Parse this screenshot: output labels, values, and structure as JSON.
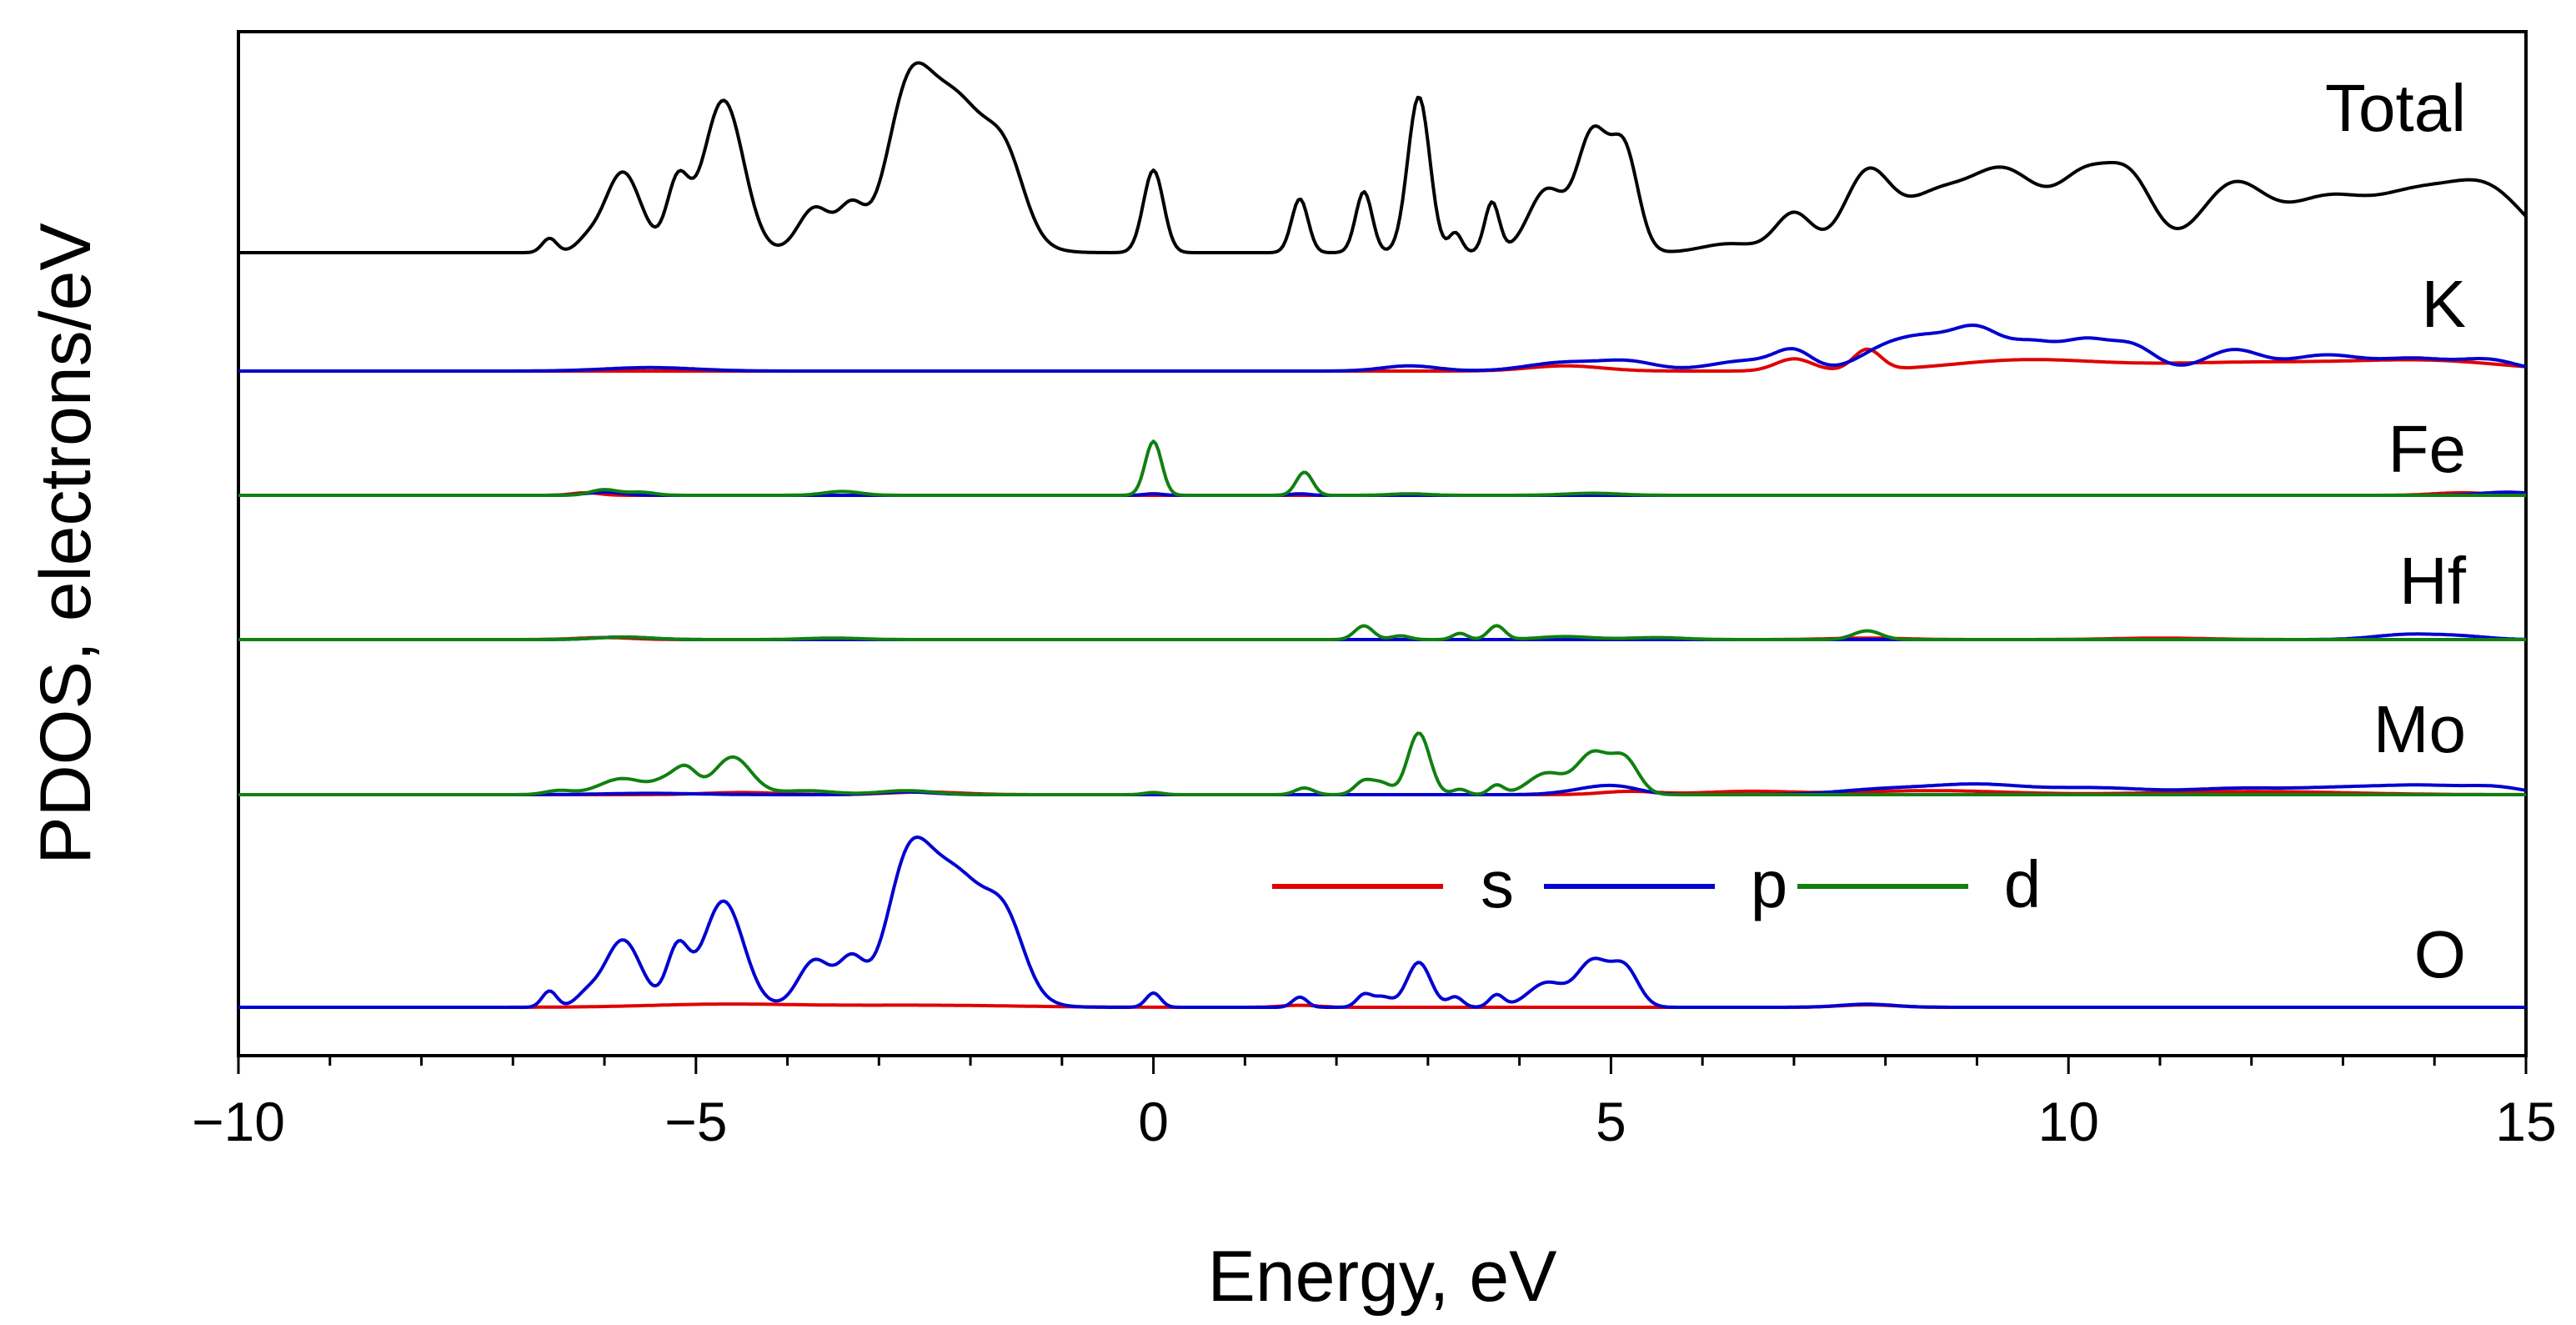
{
  "chart_data": {
    "type": "line",
    "title": "",
    "xlabel": "Energy, eV",
    "ylabel": "PDOS, electrons/eV",
    "xlim": [
      -10,
      15
    ],
    "xticks": [
      -10,
      -5,
      0,
      5,
      10,
      15
    ],
    "xtick_labels": [
      "−10",
      "−5",
      "0",
      "5",
      "10",
      "15"
    ],
    "x_minor_step": 1,
    "legend": {
      "placement": "inside, above O panel",
      "entries": [
        {
          "label": "s",
          "color": "#e00000"
        },
        {
          "label": "p",
          "color": "#0000d0"
        },
        {
          "label": "d",
          "color": "#108010"
        }
      ]
    },
    "panels": [
      {
        "label": "Total",
        "ymax": 10,
        "series": [
          {
            "name": "total",
            "color": "#000000",
            "peaks": [
              [
                -6.6,
                0.8,
                0.08
              ],
              [
                -6.2,
                0.5,
                0.12
              ],
              [
                -5.8,
                4.5,
                0.2
              ],
              [
                -5.2,
                3.8,
                0.12
              ],
              [
                -4.7,
                8.5,
                0.22
              ],
              [
                -3.7,
                2.5,
                0.18
              ],
              [
                -3.3,
                2.3,
                0.14
              ],
              [
                -2.7,
                5.5,
                0.22
              ],
              [
                -2.2,
                8.8,
                0.42
              ],
              [
                -1.6,
                3.0,
                0.2
              ],
              [
                0,
                4.6,
                0.11
              ],
              [
                1.6,
                3.0,
                0.09
              ],
              [
                2.3,
                3.4,
                0.09
              ],
              [
                2.9,
                8.7,
                0.12
              ],
              [
                3.3,
                1.1,
                0.07
              ],
              [
                3.7,
                2.8,
                0.08
              ],
              [
                4.3,
                3.5,
                0.2
              ],
              [
                4.8,
                6.5,
                0.17
              ],
              [
                5.15,
                5.5,
                0.15
              ],
              [
                6.3,
                0.5,
                0.3
              ],
              [
                7.0,
                2.2,
                0.2
              ],
              [
                7.8,
                4.3,
                0.25
              ],
              [
                8.5,
                2.8,
                0.35
              ],
              [
                9.3,
                4.5,
                0.4
              ],
              [
                10.2,
                4.0,
                0.3
              ],
              [
                10.7,
                3.5,
                0.25
              ],
              [
                11.8,
                3.7,
                0.35
              ],
              [
                12.8,
                2.9,
                0.45
              ],
              [
                13.8,
                3.0,
                0.45
              ],
              [
                14.6,
                3.2,
                0.4
              ]
            ]
          },
          {
            "name": "total-p-noise",
            "color": "#000000",
            "peaks": []
          }
        ]
      },
      {
        "label": "K",
        "ymax": 1.2,
        "series": [
          {
            "name": "s",
            "color": "#e00000",
            "peaks": [
              [
                4.5,
                0.15,
                0.4
              ],
              [
                7.0,
                0.35,
                0.2
              ],
              [
                7.8,
                0.6,
                0.15
              ],
              [
                9.5,
                0.3,
                0.8
              ],
              [
                12,
                0.25,
                1.2
              ],
              [
                14,
                0.25,
                0.8
              ]
            ]
          },
          {
            "name": "p",
            "color": "#0000d0",
            "peaks": [
              [
                -5.5,
                0.1,
                0.5
              ],
              [
                2.8,
                0.15,
                0.3
              ],
              [
                4.5,
                0.25,
                0.4
              ],
              [
                5.2,
                0.25,
                0.3
              ],
              [
                6.5,
                0.3,
                0.4
              ],
              [
                7.0,
                0.5,
                0.2
              ],
              [
                8.0,
                0.6,
                0.3
              ],
              [
                8.5,
                0.8,
                0.3
              ],
              [
                9.0,
                1.0,
                0.25
              ],
              [
                9.6,
                0.8,
                0.3
              ],
              [
                10.2,
                0.75,
                0.25
              ],
              [
                10.7,
                0.7,
                0.25
              ],
              [
                11.8,
                0.6,
                0.3
              ],
              [
                12.8,
                0.45,
                0.4
              ],
              [
                13.8,
                0.35,
                0.4
              ],
              [
                14.6,
                0.3,
                0.3
              ]
            ]
          }
        ]
      },
      {
        "label": "Fe",
        "ymax": 2.4,
        "series": [
          {
            "name": "s",
            "color": "#e00000",
            "peaks": [
              [
                -6.2,
                0.1,
                0.15
              ],
              [
                14.3,
                0.1,
                0.3
              ]
            ]
          },
          {
            "name": "p",
            "color": "#0000d0",
            "peaks": [
              [
                -6.0,
                0.12,
                0.2
              ],
              [
                0,
                0.06,
                0.1
              ],
              [
                1.6,
                0.06,
                0.1
              ],
              [
                14.8,
                0.12,
                0.3
              ]
            ]
          },
          {
            "name": "d",
            "color": "#108010",
            "peaks": [
              [
                -6.0,
                0.22,
                0.15
              ],
              [
                -5.6,
                0.12,
                0.15
              ],
              [
                -3.4,
                0.15,
                0.2
              ],
              [
                0,
                2.1,
                0.09
              ],
              [
                1.65,
                0.9,
                0.09
              ],
              [
                2.8,
                0.06,
                0.2
              ],
              [
                4.8,
                0.08,
                0.3
              ]
            ]
          }
        ]
      },
      {
        "label": "Hf",
        "ymax": 2.4,
        "series": [
          {
            "name": "s",
            "color": "#e00000",
            "peaks": [
              [
                -6.0,
                0.08,
                0.3
              ],
              [
                7.8,
                0.06,
                0.4
              ],
              [
                11,
                0.06,
                0.5
              ]
            ]
          },
          {
            "name": "p",
            "color": "#0000d0",
            "peaks": [
              [
                -5.8,
                0.1,
                0.3
              ],
              [
                13.7,
                0.2,
                0.35
              ],
              [
                14.3,
                0.12,
                0.3
              ]
            ]
          },
          {
            "name": "d",
            "color": "#108010",
            "peaks": [
              [
                -5.8,
                0.1,
                0.3
              ],
              [
                -3.5,
                0.06,
                0.3
              ],
              [
                2.3,
                0.55,
                0.1
              ],
              [
                2.7,
                0.15,
                0.1
              ],
              [
                3.35,
                0.25,
                0.08
              ],
              [
                3.75,
                0.55,
                0.09
              ],
              [
                4.5,
                0.12,
                0.3
              ],
              [
                5.5,
                0.08,
                0.3
              ],
              [
                7.8,
                0.35,
                0.15
              ]
            ]
          }
        ]
      },
      {
        "label": "Mo",
        "ymax": 3.2,
        "series": [
          {
            "name": "s",
            "color": "#e00000",
            "peaks": [
              [
                -4.5,
                0.08,
                0.4
              ],
              [
                -2.5,
                0.1,
                0.4
              ],
              [
                5.2,
                0.12,
                0.3
              ],
              [
                6.5,
                0.12,
                0.5
              ],
              [
                8.5,
                0.15,
                0.8
              ],
              [
                12,
                0.12,
                1.0
              ]
            ]
          },
          {
            "name": "p",
            "color": "#0000d0",
            "peaks": [
              [
                -5.5,
                0.05,
                0.5
              ],
              [
                -2.7,
                0.1,
                0.3
              ],
              [
                4.8,
                0.2,
                0.3
              ],
              [
                5.1,
                0.2,
                0.25
              ],
              [
                8.0,
                0.2,
                0.5
              ],
              [
                9.0,
                0.35,
                0.5
              ],
              [
                10.3,
                0.25,
                0.6
              ],
              [
                11.8,
                0.2,
                0.5
              ],
              [
                13.0,
                0.25,
                0.6
              ],
              [
                14.0,
                0.28,
                0.5
              ],
              [
                14.7,
                0.2,
                0.3
              ]
            ]
          },
          {
            "name": "d",
            "color": "#108010",
            "peaks": [
              [
                -6.5,
                0.15,
                0.15
              ],
              [
                -5.8,
                0.6,
                0.25
              ],
              [
                -5.3,
                0.5,
                0.15
              ],
              [
                -5.1,
                0.8,
                0.12
              ],
              [
                -4.6,
                1.4,
                0.2
              ],
              [
                -3.8,
                0.15,
                0.3
              ],
              [
                -2.7,
                0.15,
                0.3
              ],
              [
                0,
                0.08,
                0.1
              ],
              [
                1.65,
                0.25,
                0.1
              ],
              [
                2.3,
                0.5,
                0.1
              ],
              [
                2.5,
                0.4,
                0.1
              ],
              [
                2.9,
                2.3,
                0.12
              ],
              [
                3.35,
                0.2,
                0.08
              ],
              [
                3.75,
                0.35,
                0.08
              ],
              [
                4.3,
                0.8,
                0.2
              ],
              [
                4.8,
                1.5,
                0.17
              ],
              [
                5.15,
                1.3,
                0.15
              ]
            ]
          }
        ]
      },
      {
        "label": "O",
        "ymax": 8,
        "series": [
          {
            "name": "s",
            "color": "#e00000",
            "peaks": [
              [
                -4.7,
                0.15,
                0.8
              ],
              [
                -2.5,
                0.1,
                1.0
              ],
              [
                1.6,
                0.1,
                0.2
              ],
              [
                7.8,
                0.12,
                0.3
              ]
            ]
          },
          {
            "name": "p",
            "color": "#0000d0",
            "peaks": [
              [
                -6.6,
                0.8,
                0.08
              ],
              [
                -6.2,
                0.5,
                0.12
              ],
              [
                -5.8,
                3.3,
                0.2
              ],
              [
                -5.2,
                2.8,
                0.12
              ],
              [
                -4.7,
                5.2,
                0.22
              ],
              [
                -3.7,
                2.3,
                0.18
              ],
              [
                -3.3,
                2.1,
                0.14
              ],
              [
                -2.7,
                4.5,
                0.22
              ],
              [
                -2.2,
                6.7,
                0.42
              ],
              [
                -1.6,
                2.5,
                0.2
              ],
              [
                0,
                0.7,
                0.08
              ],
              [
                1.6,
                0.5,
                0.08
              ],
              [
                2.3,
                0.6,
                0.08
              ],
              [
                2.5,
                0.5,
                0.1
              ],
              [
                2.9,
                2.2,
                0.13
              ],
              [
                3.3,
                0.5,
                0.08
              ],
              [
                3.75,
                0.6,
                0.08
              ],
              [
                4.3,
                1.2,
                0.2
              ],
              [
                4.8,
                2.2,
                0.17
              ],
              [
                5.15,
                1.9,
                0.15
              ],
              [
                7.8,
                0.15,
                0.3
              ]
            ]
          }
        ]
      }
    ]
  }
}
